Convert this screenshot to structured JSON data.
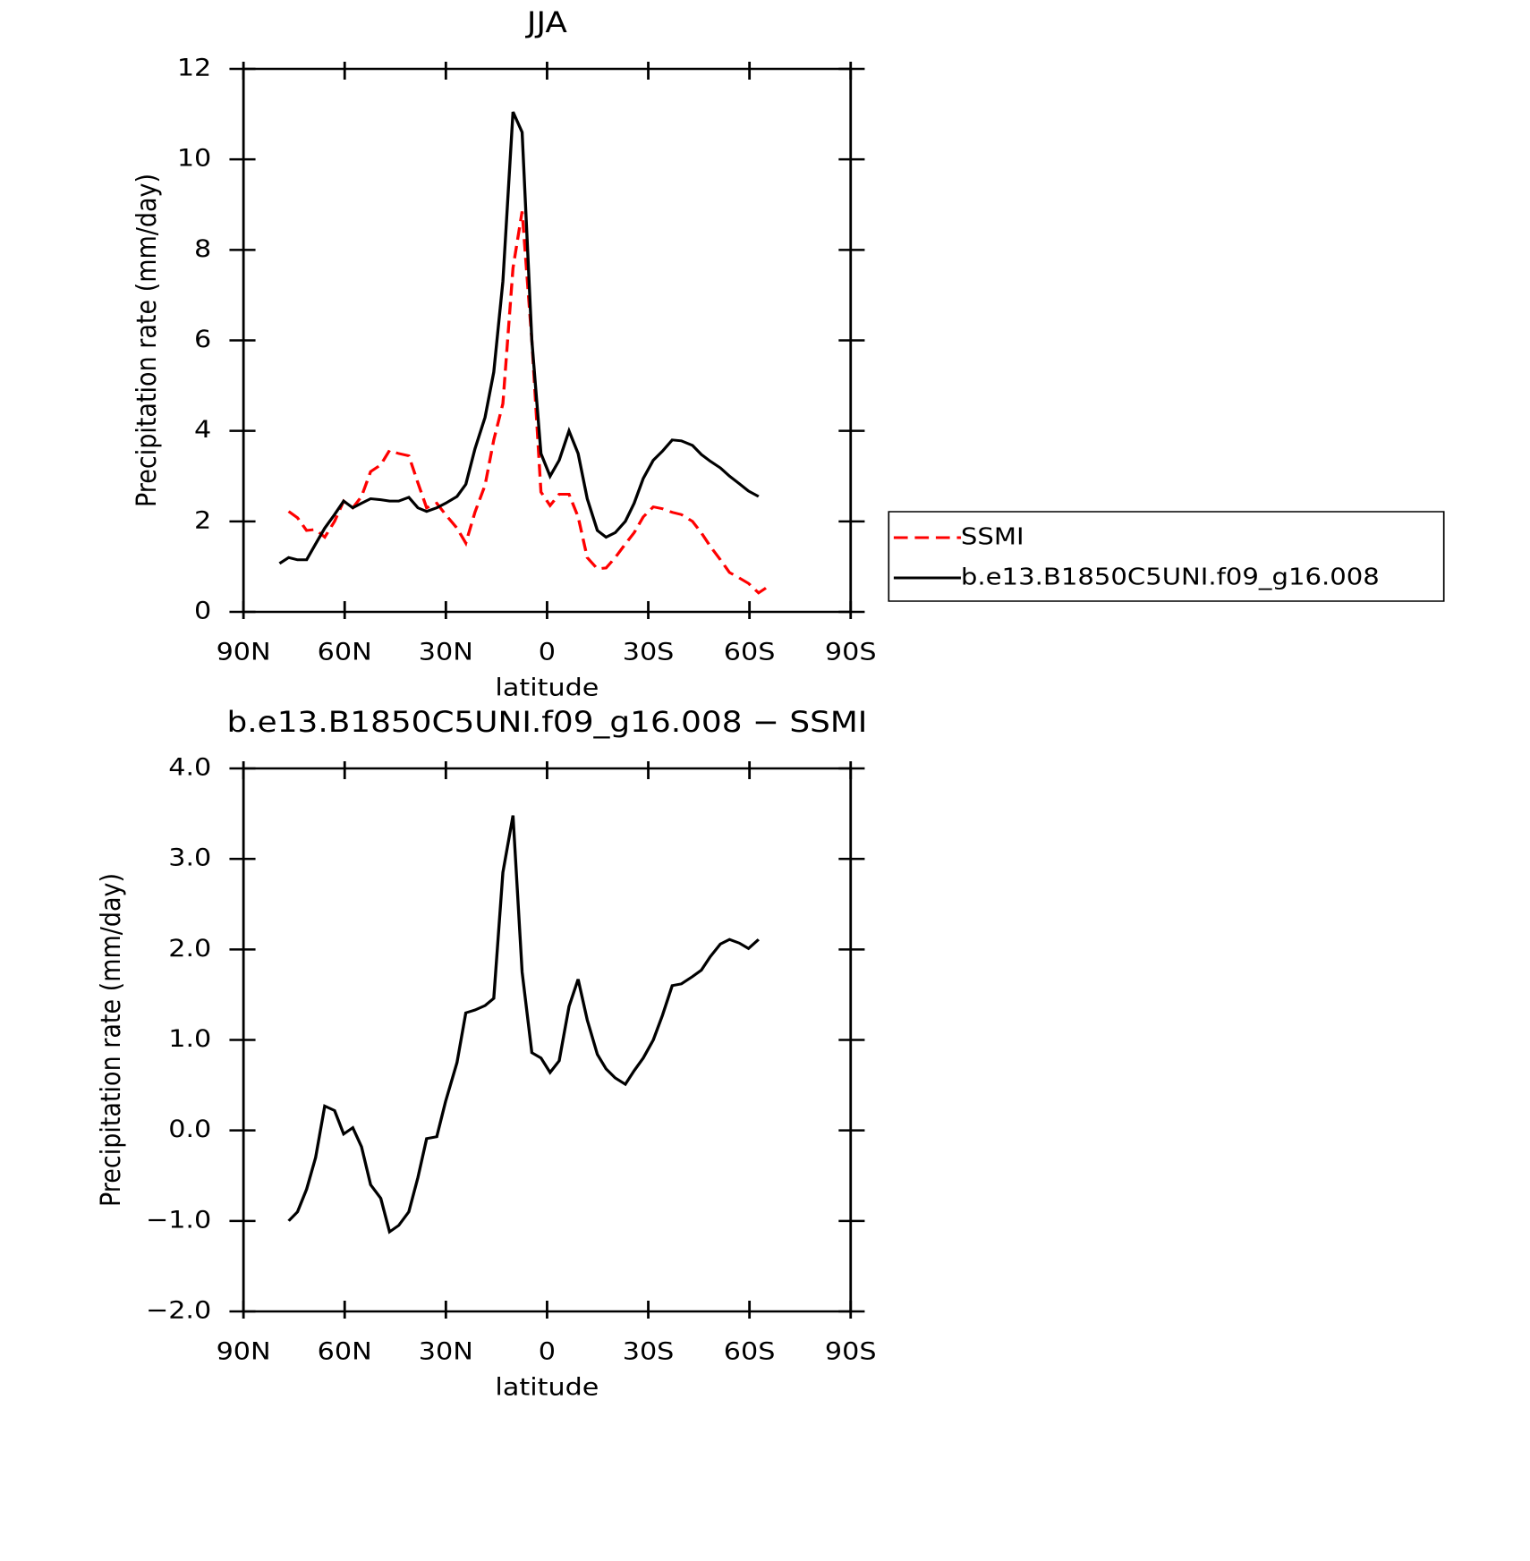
{
  "chart_data": [
    {
      "type": "line",
      "title": "JJA",
      "xlabel": "latitude",
      "ylabel": "Precipitation rate (mm/day)",
      "xlim": [
        90,
        -90
      ],
      "xticks": [
        {
          "value": 90,
          "label": "90N"
        },
        {
          "value": 60,
          "label": "60N"
        },
        {
          "value": 30,
          "label": "30N"
        },
        0,
        {
          "value": -30,
          "label": "30S"
        },
        {
          "value": -60,
          "label": "60S"
        },
        {
          "value": -90,
          "label": "90S"
        }
      ],
      "ylim": [
        0,
        12
      ],
      "yticks": [
        0,
        2,
        4,
        6,
        8,
        10,
        12
      ],
      "legend": "right",
      "series": [
        {
          "name": "SSMI",
          "color": "#ff0000",
          "dashed": true,
          "x": [
            76.6,
            74.0,
            71.3,
            68.6,
            65.9,
            63.0,
            60.3,
            57.6,
            55.0,
            52.3,
            49.3,
            46.7,
            44.0,
            41.0,
            38.3,
            35.7,
            32.7,
            30.1,
            26.7,
            24.1,
            21.4,
            18.4,
            15.8,
            13.1,
            10.1,
            7.4,
            4.5,
            1.8,
            -0.9,
            -3.6,
            -6.5,
            -9.2,
            -11.9,
            -14.9,
            -17.5,
            -20.2,
            -23.2,
            -25.8,
            -28.5,
            -31.5,
            -34.2,
            -37.1,
            -39.8,
            -43.1,
            -45.7,
            -48.4,
            -51.4,
            -54.1,
            -57.0,
            -59.7,
            -62.7,
            -65.3
          ],
          "values": [
            2.22,
            2.08,
            1.8,
            1.82,
            1.65,
            2.0,
            2.45,
            2.3,
            2.55,
            3.1,
            3.25,
            3.57,
            3.5,
            3.45,
            2.85,
            2.3,
            2.4,
            2.15,
            1.85,
            1.52,
            2.2,
            2.8,
            3.8,
            4.6,
            7.6,
            8.85,
            6.0,
            2.65,
            2.35,
            2.6,
            2.6,
            2.1,
            1.2,
            0.95,
            0.97,
            1.2,
            1.5,
            1.75,
            2.1,
            2.32,
            2.28,
            2.2,
            2.15,
            2.0,
            1.75,
            1.45,
            1.15,
            0.87,
            0.75,
            0.63,
            0.42,
            0.55
          ]
        },
        {
          "name": "b.e13.B1850C5UNI.f09_g16.008",
          "color": "#000000",
          "dashed": false,
          "x": [
            79.3,
            76.6,
            74.0,
            71.3,
            68.6,
            65.9,
            63.0,
            60.3,
            57.6,
            55.0,
            52.3,
            49.3,
            46.7,
            44.0,
            41.0,
            38.3,
            35.7,
            32.7,
            30.1,
            26.7,
            24.1,
            21.4,
            18.4,
            15.8,
            13.1,
            10.1,
            7.4,
            4.5,
            1.8,
            -0.9,
            -3.6,
            -6.5,
            -9.2,
            -11.9,
            -14.9,
            -17.5,
            -20.2,
            -23.2,
            -25.8,
            -28.5,
            -31.5,
            -34.2,
            -37.1,
            -39.8,
            -43.1,
            -45.7,
            -48.4,
            -51.4,
            -54.1,
            -57.0,
            -59.7,
            -62.7
          ],
          "values": [
            1.07,
            1.2,
            1.15,
            1.15,
            1.5,
            1.85,
            2.15,
            2.45,
            2.3,
            2.4,
            2.5,
            2.48,
            2.45,
            2.45,
            2.53,
            2.3,
            2.22,
            2.3,
            2.4,
            2.55,
            2.82,
            3.6,
            4.3,
            5.3,
            7.3,
            11.05,
            10.6,
            6.0,
            3.5,
            3.0,
            3.35,
            4.0,
            3.5,
            2.5,
            1.8,
            1.65,
            1.75,
            2.0,
            2.4,
            2.95,
            3.35,
            3.55,
            3.8,
            3.78,
            3.68,
            3.48,
            3.33,
            3.18,
            3.0,
            2.83,
            2.67,
            2.55
          ]
        }
      ]
    },
    {
      "type": "line",
      "title": "b.e13.B1850C5UNI.f09_g16.008 − SSMI",
      "xlabel": "latitude",
      "ylabel": "Precipitation rate (mm/day)",
      "xlim": [
        90,
        -90
      ],
      "xticks": [
        {
          "value": 90,
          "label": "90N"
        },
        {
          "value": 60,
          "label": "60N"
        },
        {
          "value": 30,
          "label": "30N"
        },
        0,
        {
          "value": -30,
          "label": "30S"
        },
        {
          "value": -60,
          "label": "60S"
        },
        {
          "value": -90,
          "label": "90S"
        }
      ],
      "ylim": [
        -2,
        4
      ],
      "yticks": [
        {
          "value": -2,
          "label": "−2.0"
        },
        {
          "value": -1,
          "label": "−1.0"
        },
        {
          "value": 0,
          "label": "0.0"
        },
        {
          "value": 1,
          "label": "1.0"
        },
        {
          "value": 2,
          "label": "2.0"
        },
        {
          "value": 3,
          "label": "3.0"
        },
        {
          "value": 4,
          "label": "4.0"
        }
      ],
      "series": [
        {
          "color": "#000000",
          "dashed": false,
          "x": [
            76.6,
            74.0,
            71.3,
            68.6,
            65.9,
            63.0,
            60.3,
            57.6,
            55.0,
            52.3,
            49.3,
            46.7,
            44.0,
            41.0,
            38.3,
            35.7,
            32.7,
            30.1,
            26.7,
            24.1,
            21.4,
            18.4,
            15.8,
            13.1,
            10.1,
            7.4,
            4.5,
            1.8,
            -0.9,
            -3.6,
            -6.5,
            -9.2,
            -11.9,
            -14.9,
            -17.5,
            -20.2,
            -23.2,
            -25.8,
            -28.5,
            -31.5,
            -34.2,
            -37.1,
            -39.8,
            -43.1,
            -45.7,
            -48.4,
            -51.4,
            -54.1,
            -57.0,
            -59.7,
            -62.7
          ],
          "values": [
            -1.0,
            -0.9,
            -0.65,
            -0.3,
            0.27,
            0.22,
            -0.04,
            0.03,
            -0.18,
            -0.6,
            -0.75,
            -1.12,
            -1.05,
            -0.9,
            -0.52,
            -0.09,
            -0.07,
            0.32,
            0.75,
            1.3,
            1.33,
            1.38,
            1.46,
            2.85,
            3.48,
            1.75,
            0.86,
            0.8,
            0.64,
            0.77,
            1.37,
            1.67,
            1.22,
            0.84,
            0.68,
            0.58,
            0.51,
            0.66,
            0.8,
            1.0,
            1.27,
            1.6,
            1.62,
            1.7,
            1.77,
            1.92,
            2.06,
            2.11,
            2.07,
            2.01,
            2.11
          ]
        }
      ]
    }
  ]
}
